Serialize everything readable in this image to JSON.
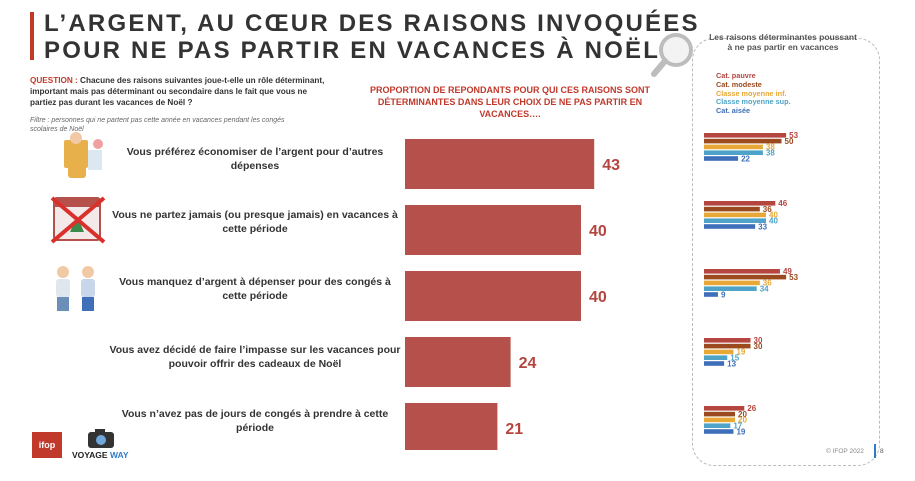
{
  "title": {
    "line1": "L’ARGENT, AU CŒUR DES RAISONS INVOQUÉES",
    "line2": "POUR NE PAS PARTIR EN VACANCES À NOËL"
  },
  "question": {
    "label": "QUESTION :",
    "text": "Chacune des raisons suivantes joue-t-elle un rôle déterminant, important mais pas déterminant ou secondaire dans le fait que vous ne partiez pas durant les vacances de Noël ?",
    "filter": "Filtre : personnes qui ne partent pas cette année en vacances pendant les congés scolaires de Noël"
  },
  "main_chart_heading": "PROPORTION DE REPONDANTS POUR QUI CES RAISONS SONT DÉTERMINANTES DANS LEUR CHOIX DE NE PAS PARTIR EN VACANCES….",
  "side_panel": {
    "title": "Les raisons déterminantes poussant à ne pas partir en vacances",
    "legend": [
      {
        "label": "Cat. pauvre",
        "color": "#b5453f"
      },
      {
        "label": "Cat. modeste",
        "color": "#9a4a1e"
      },
      {
        "label": "Classe moyenne inf.",
        "color": "#e8a838"
      },
      {
        "label": "Classe moyenne sup.",
        "color": "#4fa3c8"
      },
      {
        "label": "Cat. aisée",
        "color": "#3f6fb8"
      }
    ]
  },
  "chart_data": [
    {
      "type": "bar",
      "orientation": "horizontal",
      "categories": [
        "Vous préférez économiser de l’argent pour d’autres dépenses",
        "Vous ne partez jamais (ou presque jamais) en vacances à cette période",
        "Vous manquez d’argent à dépenser pour des congés à cette période",
        "Vous avez décidé de faire l’impasse sur les vacances pour pouvoir offrir des cadeaux de Noël",
        "Vous n’avez pas de jours de congés à prendre à cette période"
      ],
      "values": [
        43,
        40,
        40,
        24,
        21
      ],
      "color": "#b5504b",
      "label_color": "#b5453f"
    },
    {
      "type": "bar",
      "orientation": "horizontal",
      "series": [
        {
          "name": "Cat. pauvre",
          "values": [
            53,
            46,
            49,
            30,
            26
          ],
          "color": "#b5453f"
        },
        {
          "name": "Cat. modeste",
          "values": [
            50,
            36,
            53,
            30,
            20
          ],
          "color": "#9a4a1e"
        },
        {
          "name": "Classe moyenne inf.",
          "values": [
            38,
            40,
            36,
            19,
            20
          ],
          "color": "#e8a838"
        },
        {
          "name": "Classe moyenne sup.",
          "values": [
            38,
            40,
            34,
            15,
            17
          ],
          "color": "#4fa3c8"
        },
        {
          "name": "Cat. aisée",
          "values": [
            22,
            33,
            9,
            13,
            19
          ],
          "color": "#3f6fb8"
        }
      ]
    }
  ],
  "logos": {
    "ifop": "ifop",
    "voyage": "VOYAGE",
    "way": "WAY"
  },
  "footer": {
    "copyright": "© IFOP 2022",
    "page": "8"
  }
}
